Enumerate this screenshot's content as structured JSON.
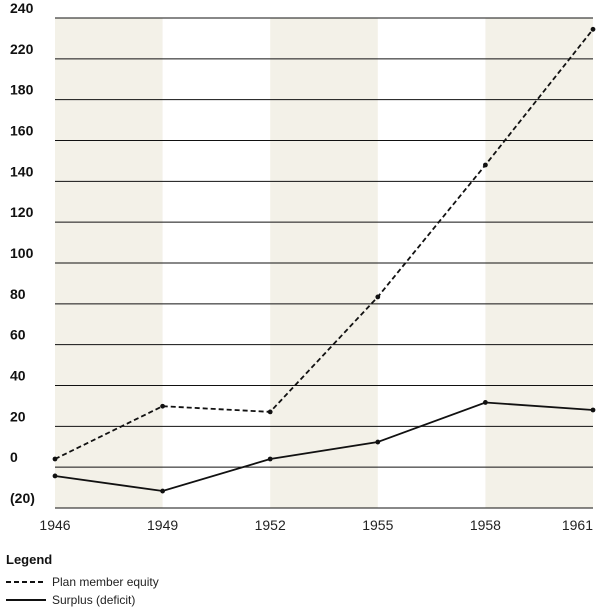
{
  "chart_data": {
    "type": "line",
    "x": [
      1946,
      1949,
      1952,
      1955,
      1958,
      1961
    ],
    "xticks": [
      "1946",
      "1949",
      "1952",
      "1955",
      "1958",
      "1961"
    ],
    "yticks": [
      "(20)",
      "0",
      "20",
      "40",
      "60",
      "80",
      "100",
      "120",
      "140",
      "160",
      "180",
      "220",
      "240"
    ],
    "ylim": [
      -20,
      240
    ],
    "series": [
      {
        "name": "Plan member equity",
        "style": "dashed",
        "points": [
          [
            1946,
            6
          ],
          [
            1949,
            34
          ],
          [
            1952,
            31
          ],
          [
            1955,
            92
          ],
          [
            1958,
            162
          ],
          [
            1961,
            234
          ]
        ]
      },
      {
        "name": "Surplus (deficit)",
        "style": "solid",
        "points": [
          [
            1946,
            -3
          ],
          [
            1949,
            -11
          ],
          [
            1952,
            6
          ],
          [
            1955,
            15
          ],
          [
            1958,
            36
          ],
          [
            1961,
            32
          ]
        ]
      }
    ],
    "shaded_bands": [
      [
        1946,
        1949
      ],
      [
        1952,
        1955
      ],
      [
        1958,
        1961
      ]
    ],
    "band_color": "#f3f1e8",
    "line_color": "#111111",
    "grid": true
  },
  "legend": {
    "title": "Legend",
    "items": [
      "Plan member equity",
      "Surplus (deficit)"
    ]
  }
}
